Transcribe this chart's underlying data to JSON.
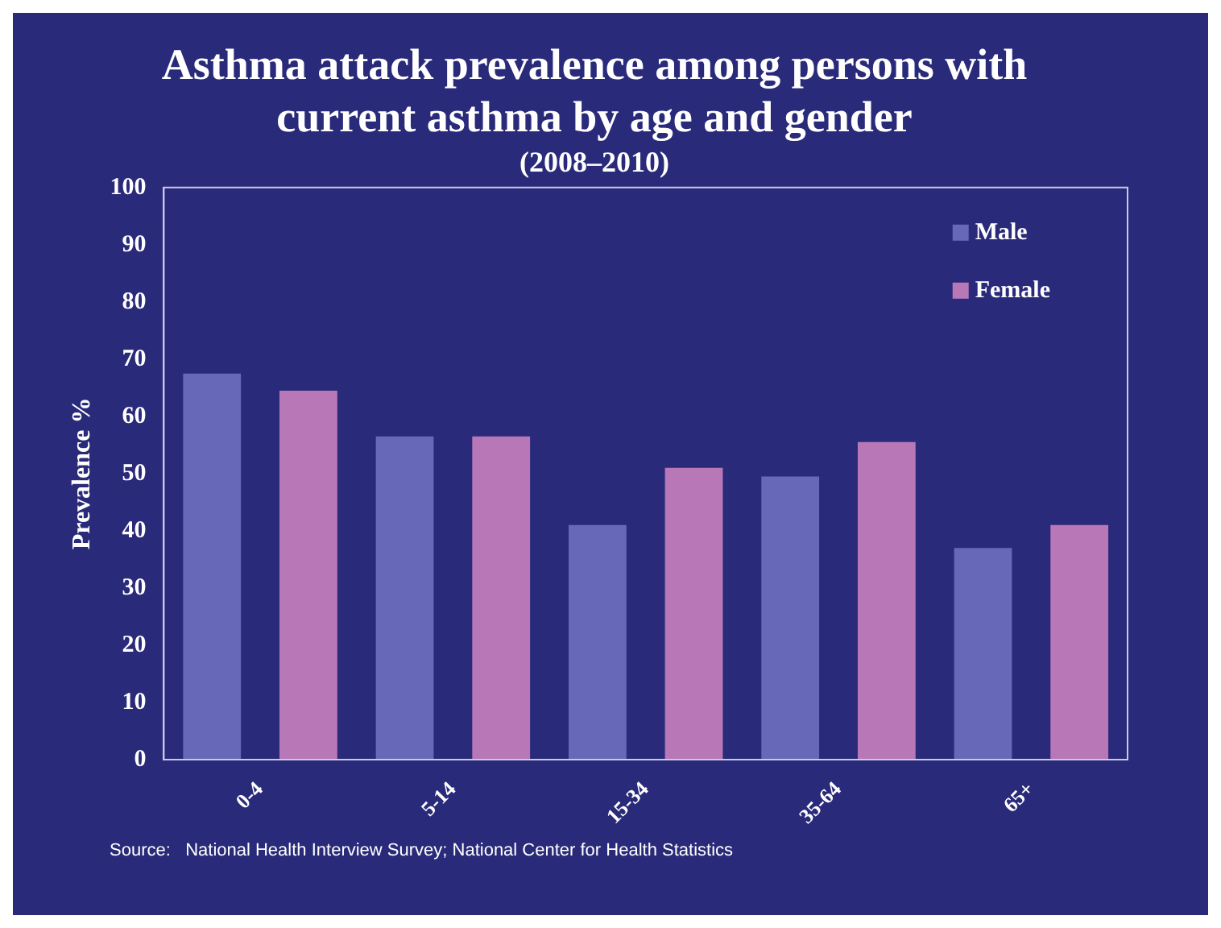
{
  "chart_data": {
    "type": "bar",
    "title": [
      "Asthma attack prevalence among persons with",
      "current asthma by age and gender"
    ],
    "subtitle": "(2008–2010)",
    "ylabel": "Prevalence %",
    "categories": [
      "0-4",
      "5-14",
      "15-34",
      "35-64",
      "65+"
    ],
    "series": [
      {
        "name": "Male",
        "color": "#6868b8",
        "values": [
          67.5,
          56.5,
          41,
          49.5,
          37
        ]
      },
      {
        "name": "Female",
        "color": "#b878b8",
        "values": [
          64.5,
          56.5,
          51,
          55.5,
          41
        ]
      }
    ],
    "ylim": [
      0,
      100
    ],
    "yticks": [
      0,
      10,
      20,
      30,
      40,
      50,
      60,
      70,
      80,
      90,
      100
    ],
    "grid": false,
    "legend": "top right",
    "annotations": [
      "Source:   National Health Interview Survey; National Center for Health Statistics"
    ]
  }
}
